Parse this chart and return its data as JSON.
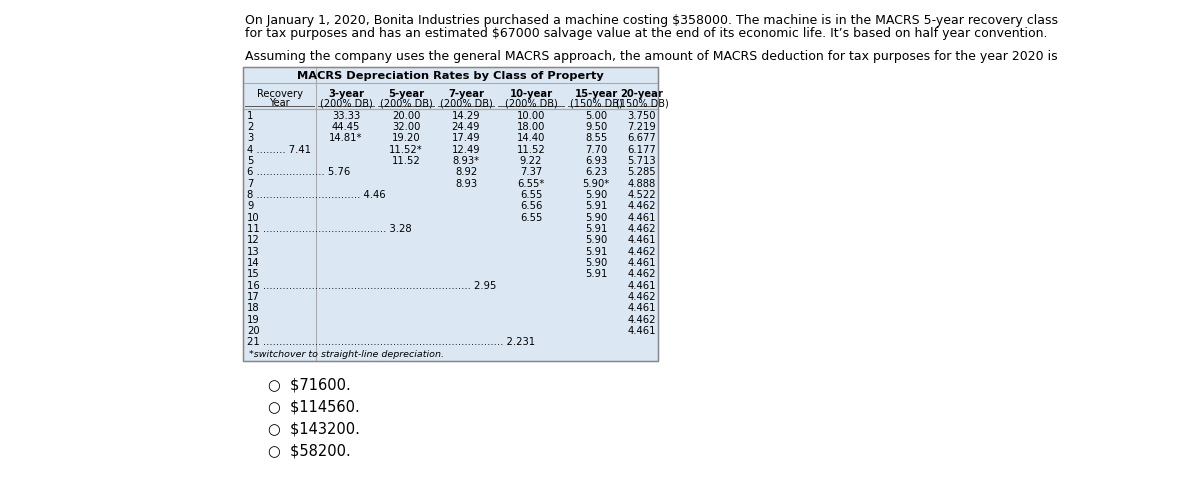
{
  "title_line1": "On January 1, 2020, Bonita Industries purchased a machine costing $358000. The machine is in the MACRS 5-year recovery class",
  "title_line2": "for tax purposes and has an estimated $67000 salvage value at the end of its economic life. It’s based on half year convention.",
  "subtitle": "Assuming the company uses the general MACRS approach, the amount of MACRS deduction for tax purposes for the year 2020 is",
  "table_title": "MACRS Depreciation Rates by Class of Property",
  "header_line1": [
    "Recovery",
    "3-year",
    "5-year",
    "7-year",
    "10-year",
    "15-year",
    "20-year"
  ],
  "header_line2": [
    "Year",
    "(200% DB)",
    "(200% DB)",
    "(200% DB)",
    "(200% DB)",
    "(150% DB)",
    "(150% DB)"
  ],
  "rows": [
    [
      "1",
      "33.33",
      "20.00",
      "14.29",
      "10.00",
      "5.00",
      "3.750"
    ],
    [
      "2",
      "44.45",
      "32.00",
      "24.49",
      "18.00",
      "9.50",
      "7.219"
    ],
    [
      "3",
      "14.81*",
      "19.20",
      "17.49",
      "14.40",
      "8.55",
      "6.677"
    ],
    [
      "4 ......... 7.41",
      "",
      "11.52*",
      "12.49",
      "11.52",
      "7.70",
      "6.177"
    ],
    [
      "5",
      "",
      "11.52",
      "8.93*",
      "9.22",
      "6.93",
      "5.713"
    ],
    [
      "6 ..................... 5.76",
      "",
      "",
      "8.92",
      "7.37",
      "6.23",
      "5.285"
    ],
    [
      "7",
      "",
      "",
      "8.93",
      "6.55*",
      "5.90*",
      "4.888"
    ],
    [
      "8 ................................ 4.46",
      "",
      "",
      "",
      "6.55",
      "5.90",
      "4.522"
    ],
    [
      "9",
      "",
      "",
      "",
      "6.56",
      "5.91",
      "4.462"
    ],
    [
      "10",
      "",
      "",
      "",
      "6.55",
      "5.90",
      "4.461"
    ],
    [
      "11 ...................................... 3.28",
      "",
      "",
      "",
      "",
      "5.91",
      "4.462"
    ],
    [
      "12",
      "",
      "",
      "",
      "",
      "5.90",
      "4.461"
    ],
    [
      "13",
      "",
      "",
      "",
      "",
      "5.91",
      "4.462"
    ],
    [
      "14",
      "",
      "",
      "",
      "",
      "5.90",
      "4.461"
    ],
    [
      "15",
      "",
      "",
      "",
      "",
      "5.91",
      "4.462"
    ],
    [
      "16 ................................................................ 2.95",
      "",
      "",
      "",
      "",
      "",
      "4.461"
    ],
    [
      "17",
      "",
      "",
      "",
      "",
      "",
      "4.462"
    ],
    [
      "18",
      "",
      "",
      "",
      "",
      "",
      "4.461"
    ],
    [
      "19",
      "",
      "",
      "",
      "",
      "",
      "4.462"
    ],
    [
      "20",
      "",
      "",
      "",
      "",
      "",
      "4.461"
    ],
    [
      "21 .......................................................................... 2.231",
      "",
      "",
      "",
      "",
      "",
      ""
    ]
  ],
  "footnote": "*switchover to straight-line depreciation.",
  "options": [
    "$71600.",
    "$114560.",
    "$143200.",
    "$58200."
  ],
  "bg_color": "#dbe8f4",
  "table_border": "#999999",
  "font_size_text": 9.0,
  "font_size_table": 7.2
}
